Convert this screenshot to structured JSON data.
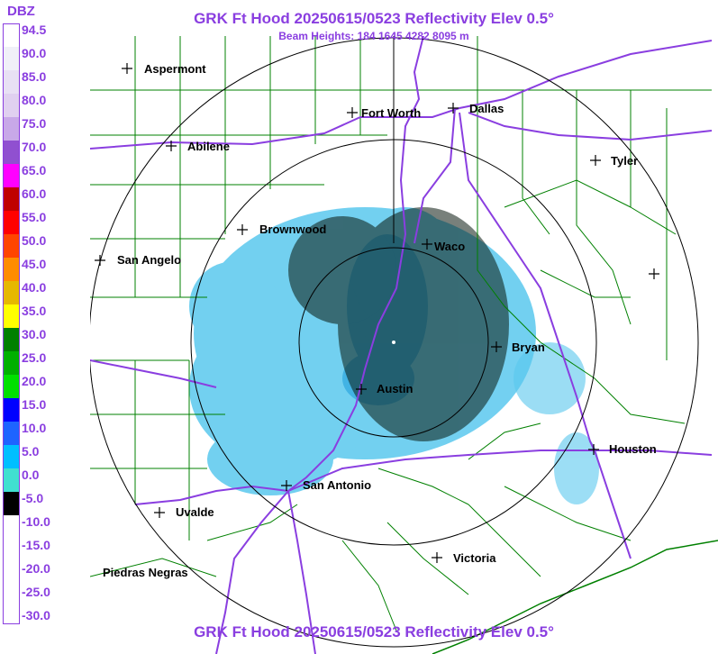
{
  "header": {
    "title": "GRK Ft Hood 20250615/0523 Reflectivity Elev 0.5°",
    "subtitle": "Beam Heights: 184 1645 4282 8095 m"
  },
  "legend": {
    "title": "DBZ",
    "levels": [
      {
        "label": "94.5",
        "color": "#ffffff"
      },
      {
        "label": "90.0",
        "color": "#f0f0f8"
      },
      {
        "label": "85.0",
        "color": "#e8e0f4"
      },
      {
        "label": "80.0",
        "color": "#e0d0f0"
      },
      {
        "label": "75.0",
        "color": "#c8a8e8"
      },
      {
        "label": "70.0",
        "color": "#9050d0"
      },
      {
        "label": "65.0",
        "color": "#ff00ff"
      },
      {
        "label": "60.0",
        "color": "#c00000"
      },
      {
        "label": "55.0",
        "color": "#ff0000"
      },
      {
        "label": "50.0",
        "color": "#ff4500"
      },
      {
        "label": "45.0",
        "color": "#ff8c00"
      },
      {
        "label": "40.0",
        "color": "#e6b800"
      },
      {
        "label": "35.0",
        "color": "#ffff00"
      },
      {
        "label": "30.0",
        "color": "#008000"
      },
      {
        "label": "25.0",
        "color": "#00b000"
      },
      {
        "label": "20.0",
        "color": "#00e000"
      },
      {
        "label": "15.0",
        "color": "#0000ff"
      },
      {
        "label": "10.0",
        "color": "#1e64ff"
      },
      {
        "label": "5.0",
        "color": "#00bfff"
      },
      {
        "label": "0.0",
        "color": "#40e0d0"
      },
      {
        "label": "-5.0",
        "color": "#000000"
      },
      {
        "label": "-10.0",
        "color": "#ffffff"
      },
      {
        "label": "-15.0",
        "color": "#ffffff"
      },
      {
        "label": "-20.0",
        "color": "#ffffff"
      },
      {
        "label": "-25.0",
        "color": "#ffffff"
      },
      {
        "label": "-30.0",
        "color": "#ffffff"
      }
    ]
  },
  "map": {
    "cities": [
      {
        "name": "Aspermont"
      },
      {
        "name": "Fort Worth"
      },
      {
        "name": "Dallas"
      },
      {
        "name": "Abilene"
      },
      {
        "name": "Tyler"
      },
      {
        "name": "Brownwood"
      },
      {
        "name": "Waco"
      },
      {
        "name": "San Angelo"
      },
      {
        "name": "Bryan"
      },
      {
        "name": "Austin"
      },
      {
        "name": "Houston"
      },
      {
        "name": "San Antonio"
      },
      {
        "name": "Uvalde"
      },
      {
        "name": "Victoria"
      },
      {
        "name": "Piedras Negras"
      }
    ],
    "colors": {
      "county_lines": "#008000",
      "highways": "#8a3ee0",
      "range_rings": "#000000",
      "echo_light": "#5ac8ee",
      "echo_dark": "#000000"
    }
  }
}
